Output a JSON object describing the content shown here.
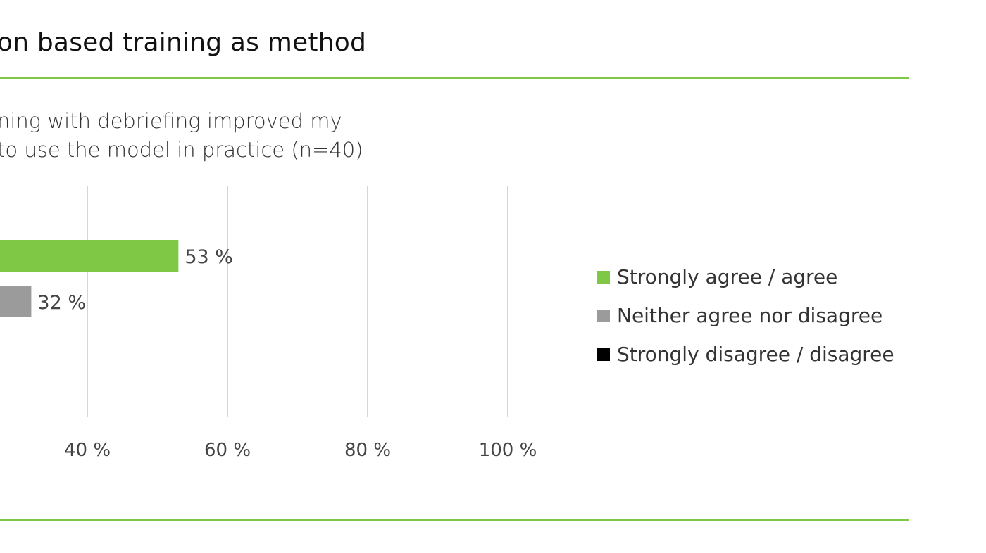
{
  "chart_data": {
    "type": "bar",
    "orientation": "horizontal",
    "title": "on based training as method",
    "subtitle_lines": [
      "ning with debriefing improved my",
      "to use the model in practice (n=40)"
    ],
    "categories": [
      "Strongly agree / agree",
      "Neither agree nor disagree",
      "Strongly disagree / disagree"
    ],
    "values": [
      53,
      32,
      null
    ],
    "value_labels": [
      "53 %",
      "32 %",
      ""
    ],
    "colors": [
      "#7ec846",
      "#9b9b9b",
      "#000000"
    ],
    "x_ticks": [
      40,
      60,
      80,
      100
    ],
    "x_tick_labels": [
      "40 %",
      "60 %",
      "80 %",
      "100 %"
    ],
    "xlim": [
      0,
      100
    ],
    "grid": true,
    "legend": {
      "placement": "right",
      "items": [
        {
          "label": "Strongly agree / agree",
          "color": "#7ec846"
        },
        {
          "label": "Neither agree nor disagree",
          "color": "#9b9b9b"
        },
        {
          "label": "Strongly disagree / disagree",
          "color": "#000000"
        }
      ]
    }
  }
}
